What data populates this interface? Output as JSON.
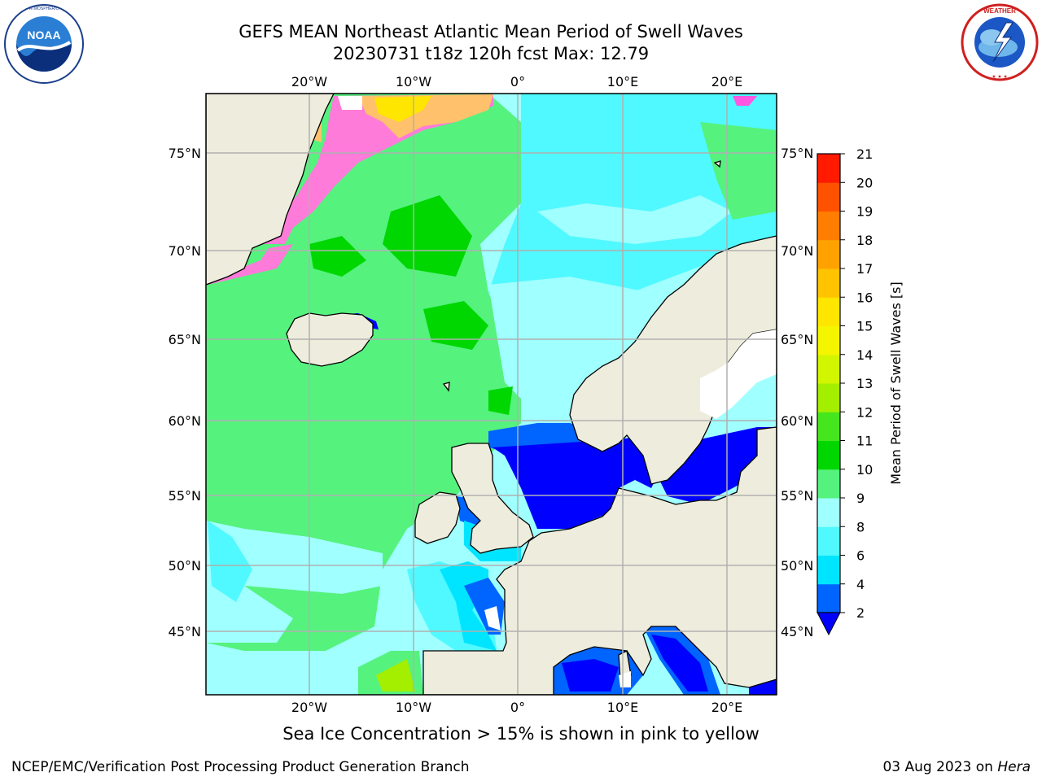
{
  "header": {
    "title_line1": "GEFS MEAN Northeast Atlantic Mean Period of Swell Waves",
    "title_line2": "20230731 t18z 120h fcst   Max: 12.79"
  },
  "logos": {
    "left": {
      "icon": "noaa-logo",
      "ring_text": "NATIONAL OCEANIC AND ATMOSPHERIC ADMINISTRATION · U.S. DEPARTMENT OF COMMERCE",
      "center_text": "NOAA"
    },
    "right": {
      "icon": "nws-logo",
      "ring_text": "NATIONAL WEATHER SERVICE"
    }
  },
  "map": {
    "lon_labels": [
      "20°W",
      "10°W",
      "0°",
      "10°E",
      "20°E"
    ],
    "lat_labels": [
      "75°N",
      "70°N",
      "65°N",
      "60°N",
      "55°N",
      "50°N",
      "45°N"
    ],
    "grid": true,
    "land_color": "#eeeddd",
    "coast_color": "#000000"
  },
  "colorbar": {
    "label": "Mean Period of Swell Waves [s]",
    "ticks": [
      "2",
      "4",
      "6",
      "8",
      "9",
      "10",
      "11",
      "12",
      "13",
      "14",
      "15",
      "16",
      "17",
      "18",
      "19",
      "20",
      "21"
    ],
    "colors": [
      "#0064ff",
      "#00e5ff",
      "#4ff9ff",
      "#a0ffff",
      "#55f27e",
      "#00d700",
      "#46e61e",
      "#a4ee00",
      "#d2f500",
      "#f5f500",
      "#ffe600",
      "#ffc300",
      "#ffa200",
      "#ff7d00",
      "#ff5200",
      "#ff1a00"
    ],
    "under_color": "#0000ff"
  },
  "caption": "Sea Ice Concentration > 15% is shown in pink to yellow",
  "footer": {
    "credit": "NCEP/EMC/Verification Post Processing Product Generation Branch",
    "date": "03 Aug 2023 on ",
    "host": "Hera"
  }
}
